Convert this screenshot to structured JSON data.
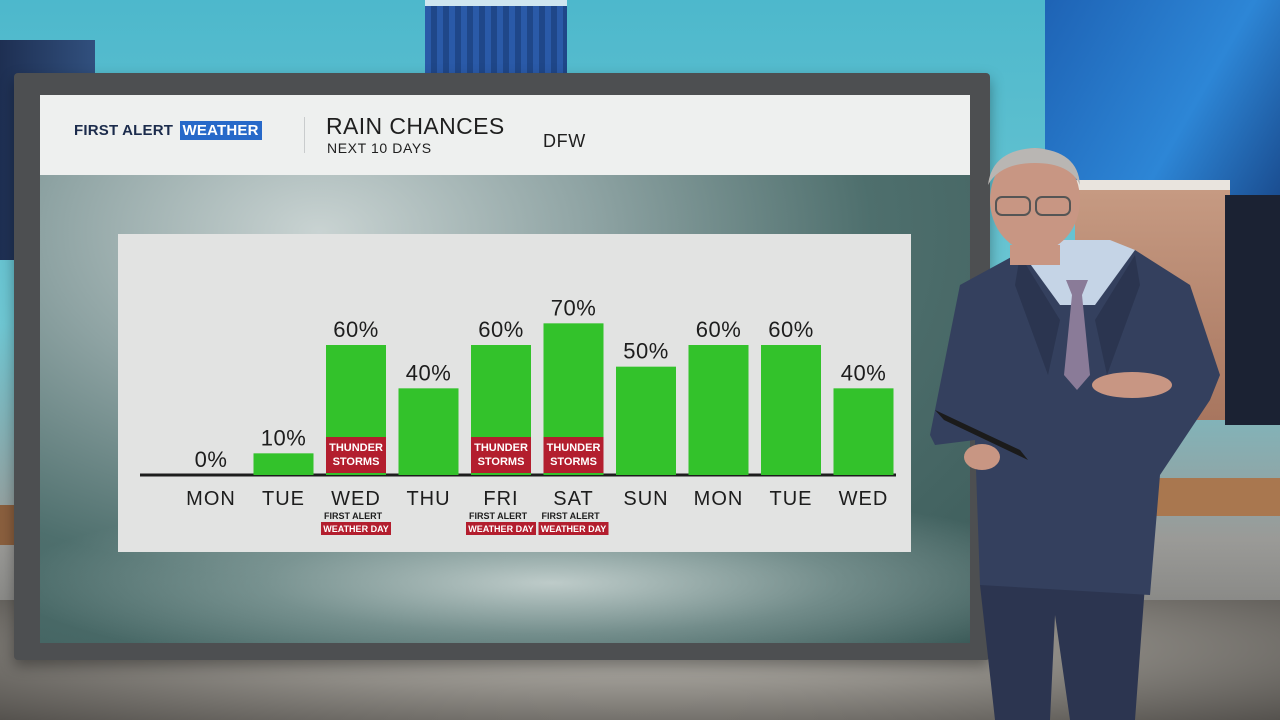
{
  "branding": {
    "logo_text": "FIRST ALERT",
    "logo_boxed": "WEATHER"
  },
  "header": {
    "title": "RAIN CHANCES",
    "subtitle": "NEXT 10 DAYS",
    "location": "DFW"
  },
  "colors": {
    "bar": "#33c22b",
    "storm_tag": "#b31e2e",
    "baseline": "#1d1d1d",
    "text": "#1d1d1d"
  },
  "chart_data": {
    "type": "bar",
    "categories": [
      "MON",
      "TUE",
      "WED",
      "THU",
      "FRI",
      "SAT",
      "SUN",
      "MON",
      "TUE",
      "WED"
    ],
    "values": [
      0,
      10,
      60,
      40,
      60,
      70,
      50,
      60,
      60,
      40
    ],
    "value_labels": [
      "0%",
      "10%",
      "60%",
      "40%",
      "60%",
      "70%",
      "50%",
      "60%",
      "60%",
      "40%"
    ],
    "ylim": [
      0,
      100
    ],
    "storm_tags": [
      null,
      null,
      [
        "THUNDER",
        "STORMS"
      ],
      null,
      [
        "THUNDER",
        "STORMS"
      ],
      [
        "THUNDER",
        "STORMS"
      ],
      null,
      null,
      null,
      null
    ],
    "alert_tags": [
      null,
      null,
      [
        "FIRST ALERT",
        "WEATHER DAY"
      ],
      null,
      [
        "FIRST ALERT",
        "WEATHER DAY"
      ],
      [
        "FIRST ALERT",
        "WEATHER DAY"
      ],
      null,
      null,
      null,
      null
    ]
  }
}
